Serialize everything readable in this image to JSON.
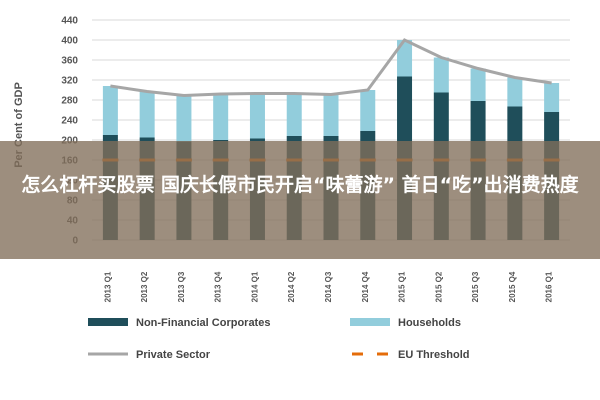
{
  "chart_data": {
    "type": "bar",
    "stacked": true,
    "categories": [
      "2013 Q1",
      "2013 Q2",
      "2013 Q3",
      "2013 Q4",
      "2014 Q1",
      "2014 Q2",
      "2014 Q3",
      "2014 Q4",
      "2015 Q1",
      "2015 Q2",
      "2015 Q3",
      "2015 Q4",
      "2016 Q1"
    ],
    "series": [
      {
        "name": "Non-Financial Corporates",
        "kind": "bar",
        "color": "#1f4e5a",
        "values": [
          210,
          205,
          197,
          200,
          203,
          208,
          208,
          218,
          327,
          295,
          278,
          267,
          256
        ]
      },
      {
        "name": "Households",
        "kind": "bar",
        "color": "#92cddc",
        "values": [
          98,
          92,
          92,
          92,
          90,
          85,
          83,
          82,
          73,
          70,
          65,
          58,
          58
        ]
      },
      {
        "name": "Private Sector",
        "kind": "line",
        "color": "#a6a6a6",
        "values": [
          308,
          297,
          289,
          292,
          293,
          293,
          291,
          300,
          400,
          365,
          343,
          325,
          314
        ]
      },
      {
        "name": "EU Threshold",
        "kind": "line",
        "style": "dashed",
        "color": "#e46c0a",
        "values": [
          160,
          160,
          160,
          160,
          160,
          160,
          160,
          160,
          160,
          160,
          160,
          160,
          160
        ]
      }
    ],
    "ylabel": "Per Cent of GDP",
    "ylim": [
      0,
      440
    ],
    "yticks": [
      0,
      40,
      80,
      120,
      160,
      200,
      240,
      280,
      320,
      360,
      400,
      440
    ],
    "grid": true,
    "legend_position": "bottom"
  },
  "banner": {
    "text": "怎么杠杆买股票 国庆长假市民开启“味蕾游” 首日“吃”出消费热度"
  }
}
